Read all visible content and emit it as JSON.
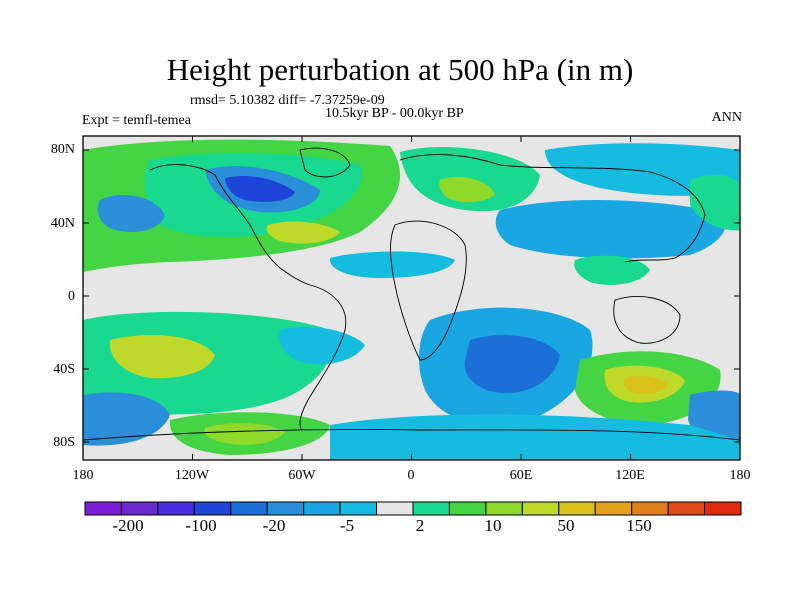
{
  "title": "Height perturbation at 500 hPa (in m)",
  "stats": "rmsd= 5.10382 diff= -7.37259e-09",
  "period": "10.5kyr BP - 00.0kyr BP",
  "experiment": "Expt = temfl-temea",
  "season": "ANN",
  "lat_labels": [
    "80N",
    "40N",
    "0",
    "40S",
    "80S"
  ],
  "lon_labels": [
    "180",
    "120W",
    "60W",
    "0",
    "60E",
    "120E",
    "180"
  ],
  "colorbar": {
    "colors": [
      "#7a1fd6",
      "#6a2bcc",
      "#4a2ee0",
      "#1f44d8",
      "#1d6fd8",
      "#2a8fd8",
      "#1aa6e0",
      "#16bce0",
      "#e6e6e6",
      "#18d98f",
      "#45d444",
      "#8ed92a",
      "#bfd92a",
      "#d9c21a",
      "#e3a01a",
      "#e0801a",
      "#e04a18",
      "#e02a10"
    ],
    "labels": [
      "-200",
      "-100",
      "-20",
      "-5",
      "2",
      "10",
      "50",
      "150"
    ]
  },
  "map_colors": {
    "neutral": "#e6e6e6",
    "light_green": "#18d98f",
    "green": "#45d444",
    "yellow_green": "#8ed92a",
    "lime": "#bfd92a",
    "cyan": "#16bce0",
    "light_blue": "#1aa6e0",
    "blue": "#2a8fd8",
    "mid_blue": "#1d6fd8",
    "dark_blue": "#1f44d8",
    "orange_yellow": "#d9c21a"
  }
}
